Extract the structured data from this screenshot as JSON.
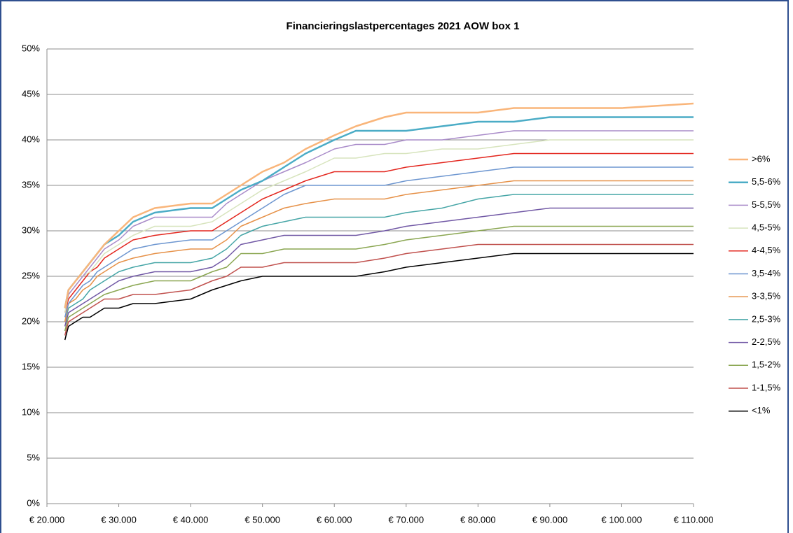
{
  "chart_data": {
    "type": "line",
    "title": "Financieringslastpercentages 2021 AOW box 1",
    "x": [
      22500,
      23000,
      24000,
      25000,
      26000,
      27000,
      28000,
      30000,
      32000,
      35000,
      40000,
      43000,
      45000,
      47000,
      50000,
      53000,
      56000,
      60000,
      63000,
      67000,
      70000,
      75000,
      80000,
      85000,
      90000,
      100000,
      110000
    ],
    "xlim": [
      20000,
      110000
    ],
    "xticks": [
      {
        "value": 20000,
        "label": "€ 20.000"
      },
      {
        "value": 30000,
        "label": "€ 30.000"
      },
      {
        "value": 40000,
        "label": "€ 40.000"
      },
      {
        "value": 50000,
        "label": "€ 50.000"
      },
      {
        "value": 60000,
        "label": "€ 60.000"
      },
      {
        "value": 70000,
        "label": "€ 70.000"
      },
      {
        "value": 80000,
        "label": "€ 80.000"
      },
      {
        "value": 90000,
        "label": "€ 90.000"
      },
      {
        "value": 100000,
        "label": "€ 100.000"
      },
      {
        "value": 110000,
        "label": "€ 110.000"
      }
    ],
    "ylim": [
      0,
      50
    ],
    "yticks": [
      {
        "value": 0,
        "label": "0%"
      },
      {
        "value": 5,
        "label": "5%"
      },
      {
        "value": 10,
        "label": "10%"
      },
      {
        "value": 15,
        "label": "15%"
      },
      {
        "value": 20,
        "label": "20%"
      },
      {
        "value": 25,
        "label": "25%"
      },
      {
        "value": 30,
        "label": "30%"
      },
      {
        "value": 35,
        "label": "35%"
      },
      {
        "value": 40,
        "label": "40%"
      },
      {
        "value": 45,
        "label": "45%"
      },
      {
        "value": 50,
        "label": "50%"
      }
    ],
    "grid": true,
    "legend": "right",
    "series": [
      {
        "name": ">6%",
        "color": "#f9b57a",
        "values": [
          21.5,
          23.5,
          24.5,
          25.5,
          26.5,
          27.5,
          28.5,
          30,
          31.5,
          32.5,
          33,
          33,
          34,
          35,
          36.5,
          37.5,
          39,
          40.5,
          41.5,
          42.5,
          43,
          43,
          43,
          43.5,
          43.5,
          43.5,
          44
        ]
      },
      {
        "name": "5,5-6%",
        "color": "#4bacc6",
        "values": [
          21.5,
          23.5,
          24.5,
          25.5,
          26.5,
          27.5,
          28.5,
          29.5,
          31,
          32,
          32.5,
          32.5,
          33.5,
          34.5,
          35.5,
          37,
          38.5,
          40,
          41,
          41,
          41,
          41.5,
          42,
          42,
          42.5,
          42.5,
          42.5
        ]
      },
      {
        "name": "5-5,5%",
        "color": "#a98bc9",
        "values": [
          21.5,
          23,
          24,
          25,
          26,
          27,
          28,
          29,
          30.5,
          31.5,
          31.5,
          31.5,
          33,
          34,
          35.5,
          36.5,
          37.5,
          39,
          39.5,
          39.5,
          40,
          40,
          40.5,
          41,
          41,
          41,
          41
        ]
      },
      {
        "name": "4,5-5%",
        "color": "#d7e4bd",
        "values": [
          21,
          23,
          24,
          25,
          25.5,
          26.5,
          27.5,
          28.5,
          29.5,
          30.5,
          30.5,
          31,
          32,
          33,
          34.5,
          35.5,
          36.5,
          38,
          38,
          38.5,
          38.5,
          39,
          39,
          39.5,
          40,
          40,
          40
        ]
      },
      {
        "name": "4-4,5%",
        "color": "#e3261e",
        "values": [
          21,
          22.5,
          23.5,
          24.5,
          25.5,
          26,
          27,
          28,
          29,
          29.5,
          30,
          30,
          31,
          32,
          33.5,
          34.5,
          35.5,
          36.5,
          36.5,
          36.5,
          37,
          37.5,
          38,
          38.5,
          38.5,
          38.5,
          38.5
        ]
      },
      {
        "name": "3,5-4%",
        "color": "#6d96d0",
        "values": [
          20.5,
          22,
          23,
          24,
          24.5,
          25.5,
          26,
          27,
          28,
          28.5,
          29,
          29,
          30,
          31,
          32.5,
          34,
          35,
          35,
          35,
          35,
          35.5,
          36,
          36.5,
          37,
          37,
          37,
          37
        ]
      },
      {
        "name": "3-3,5%",
        "color": "#e69148",
        "values": [
          20,
          22,
          22.5,
          23.5,
          24,
          25,
          25.5,
          26.5,
          27,
          27.5,
          28,
          28,
          29,
          30.5,
          31.5,
          32.5,
          33,
          33.5,
          33.5,
          33.5,
          34,
          34.5,
          35,
          35.5,
          35.5,
          35.5,
          35.5
        ]
      },
      {
        "name": "2,5-3%",
        "color": "#45a5a6",
        "values": [
          20,
          21.5,
          22,
          22.5,
          23.5,
          24,
          24.5,
          25.5,
          26,
          26.5,
          26.5,
          27,
          28,
          29.5,
          30.5,
          31,
          31.5,
          31.5,
          31.5,
          31.5,
          32,
          32.5,
          33.5,
          34,
          34,
          34,
          34
        ]
      },
      {
        "name": "2-2,5%",
        "color": "#7158a5",
        "values": [
          19.5,
          21,
          21.5,
          22,
          22.5,
          23,
          23.5,
          24.5,
          25,
          25.5,
          25.5,
          26,
          27,
          28.5,
          29,
          29.5,
          29.5,
          29.5,
          29.5,
          30,
          30.5,
          31,
          31.5,
          32,
          32.5,
          32.5,
          32.5
        ]
      },
      {
        "name": "1,5-2%",
        "color": "#8aa651",
        "values": [
          19,
          20.5,
          21,
          21.5,
          22,
          22.5,
          23,
          23.5,
          24,
          24.5,
          24.5,
          25.5,
          26,
          27.5,
          27.5,
          28,
          28,
          28,
          28,
          28.5,
          29,
          29.5,
          30,
          30.5,
          30.5,
          30.5,
          30.5
        ]
      },
      {
        "name": "1-1,5%",
        "color": "#c0504d",
        "values": [
          18.5,
          20,
          20.5,
          21,
          21.5,
          22,
          22.5,
          22.5,
          23,
          23,
          23.5,
          24.5,
          25,
          26,
          26,
          26.5,
          26.5,
          26.5,
          26.5,
          27,
          27.5,
          28,
          28.5,
          28.5,
          28.5,
          28.5,
          28.5
        ]
      },
      {
        "name": "<1%",
        "color": "#000000",
        "values": [
          18,
          19.5,
          20,
          20.5,
          20.5,
          21,
          21.5,
          21.5,
          22,
          22,
          22.5,
          23.5,
          24,
          24.5,
          25,
          25,
          25,
          25,
          25,
          25.5,
          26,
          26.5,
          27,
          27.5,
          27.5,
          27.5,
          27.5
        ]
      }
    ]
  }
}
